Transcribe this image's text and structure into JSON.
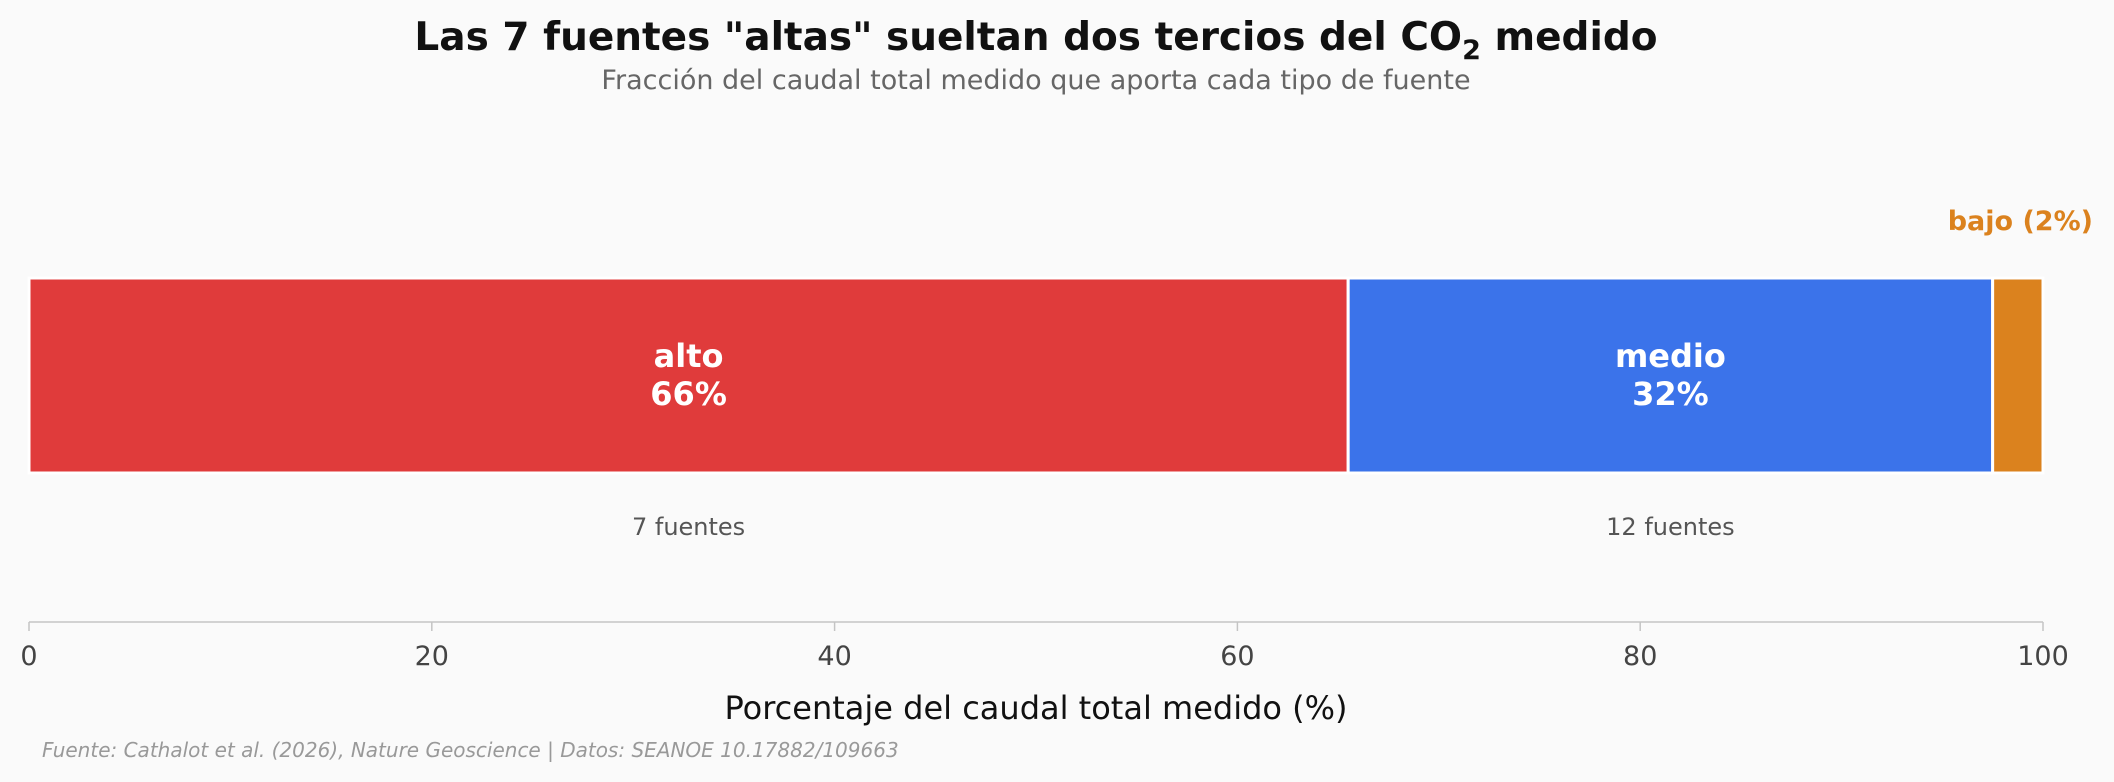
{
  "chart_data": {
    "type": "bar",
    "orientation": "horizontal-stacked",
    "title_main": "Las 7 fuentes \"altas\" sueltan dos tercios del CO",
    "title_sub": "2",
    "title_end": " medido",
    "subtitle": "Fracción del caudal total medido que aporta cada tipo de fuente",
    "xlabel": "Porcentaje del caudal total medido (%)",
    "xlim": [
      0,
      100
    ],
    "xticks": [
      0,
      20,
      40,
      60,
      80,
      100
    ],
    "grid": false,
    "segments": [
      {
        "name": "alto",
        "percent_label": "66%",
        "value": 65.5,
        "count_label": "7 fuentes",
        "color": "#e03b3b"
      },
      {
        "name": "medio",
        "percent_label": "32%",
        "value": 32.0,
        "count_label": "12 fuentes",
        "color": "#3b73ea"
      },
      {
        "name": "bajo",
        "value": 2.5,
        "outside_label": "bajo (2%)",
        "color": "#db821e"
      }
    ],
    "source": "Fuente: Cathalot et al. (2026), Nature Geoscience | Datos: SEANOE 10.17882/109663"
  }
}
